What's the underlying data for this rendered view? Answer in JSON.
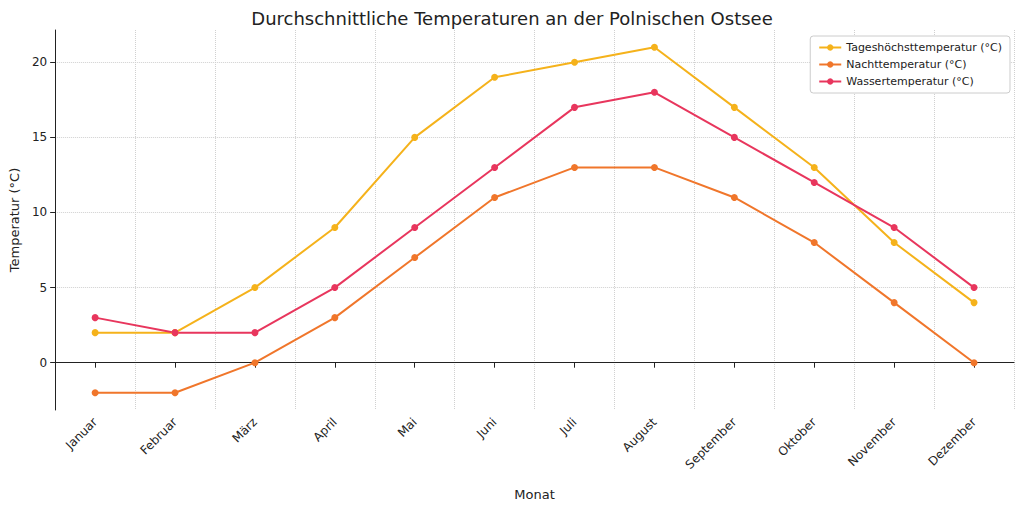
{
  "chart_data": {
    "type": "line",
    "title": "Durchschnittliche Temperaturen an der Polnischen Ostsee",
    "x_label": "Monat",
    "y_label": "Temperatur (°C)",
    "categories": [
      "Januar",
      "Februar",
      "März",
      "April",
      "Mai",
      "Juni",
      "Juli",
      "August",
      "September",
      "Oktober",
      "November",
      "Dezember"
    ],
    "series": [
      {
        "name": "Tageshöchsttemperatur (°C)",
        "color": "#f5b21b",
        "values": [
          2,
          2,
          5,
          9,
          15,
          19,
          20,
          21,
          17,
          13,
          8,
          4
        ]
      },
      {
        "name": "Nachttemperatur (°C)",
        "color": "#f0762b",
        "values": [
          -2,
          -2,
          0,
          3,
          7,
          11,
          13,
          13,
          11,
          8,
          4,
          0
        ]
      },
      {
        "name": "Wassertemperatur (°C)",
        "color": "#e8365d",
        "values": [
          3,
          2,
          2,
          5,
          9,
          13,
          17,
          18,
          15,
          12,
          9,
          5
        ]
      }
    ],
    "ylim": [
      -3.15,
      22.15
    ],
    "yticks": [
      0,
      5,
      10,
      15,
      20
    ],
    "grid": true,
    "legend": "upper right",
    "marker": "circle"
  }
}
